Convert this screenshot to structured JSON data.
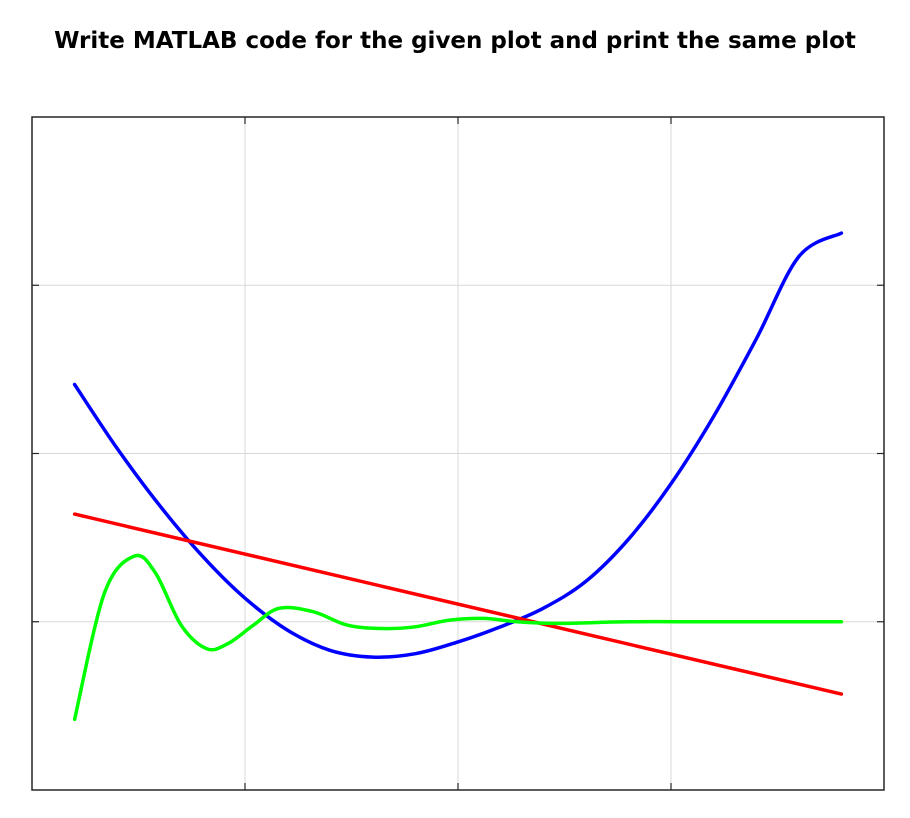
{
  "header": {
    "title": "Write MATLAB code for the given plot and print the same plot"
  },
  "chart_data": {
    "type": "line",
    "title": "",
    "xlabel": "",
    "ylabel": "",
    "xlim": [
      0,
      10
    ],
    "ylim": [
      0,
      4
    ],
    "xgrid": [
      0,
      2.5,
      5,
      7.5,
      10
    ],
    "ygrid": [
      0,
      1,
      2,
      3,
      4
    ],
    "grid": true,
    "legend": "none",
    "series": [
      {
        "color": "#0000ff",
        "x": [
          0.5,
          1.0,
          1.5,
          2.0,
          2.5,
          3.0,
          3.5,
          4.0,
          4.5,
          5.0,
          5.5,
          6.0,
          6.5,
          7.0,
          7.5,
          8.0,
          8.5,
          9.0,
          9.5
        ],
        "values": [
          2.41,
          2.03,
          1.69,
          1.39,
          1.14,
          0.95,
          0.83,
          0.79,
          0.81,
          0.88,
          0.97,
          1.08,
          1.24,
          1.49,
          1.82,
          2.22,
          2.68,
          3.17,
          3.31
        ]
      },
      {
        "color": "#ff0000",
        "x": [
          0.5,
          9.5
        ],
        "values": [
          1.64,
          0.57
        ]
      },
      {
        "color": "#00ff00",
        "x": [
          0.5,
          0.85,
          1.2,
          1.45,
          1.75,
          2.05,
          2.3,
          2.6,
          2.9,
          3.3,
          3.7,
          4.1,
          4.5,
          4.9,
          5.3,
          5.7,
          6.2,
          7.0,
          8.0,
          9.5
        ],
        "values": [
          0.42,
          1.17,
          1.39,
          1.29,
          0.98,
          0.84,
          0.87,
          0.98,
          1.08,
          1.06,
          0.98,
          0.96,
          0.97,
          1.01,
          1.02,
          1.0,
          0.99,
          1.0,
          1.0,
          1.0
        ]
      }
    ]
  }
}
